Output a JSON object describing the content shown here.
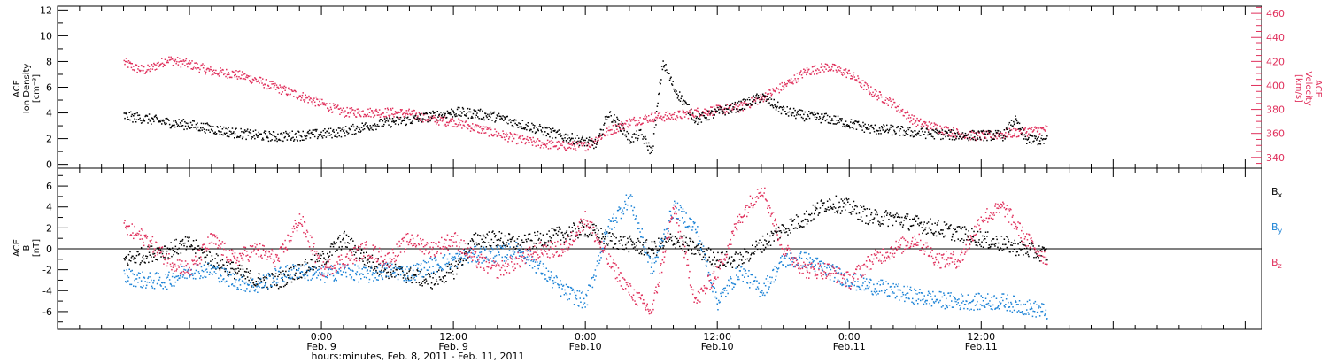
{
  "colors": {
    "black": "#000000",
    "pink": "#e0305c",
    "blue": "#1a82d6"
  },
  "chart_data": [
    {
      "type": "scatter",
      "panel": "top",
      "ylabel_left_lines": [
        "ACE",
        "Ion Density",
        "[cm⁻³]"
      ],
      "ylabel_right_lines": [
        "ACE",
        "Velocity",
        "[km/s]"
      ],
      "ylim_left": [
        -0.3,
        12.3
      ],
      "ylim_right": [
        331,
        466
      ],
      "yticks_left": [
        0,
        2,
        4,
        6,
        8,
        10,
        12
      ],
      "yticks_right": [
        340,
        360,
        380,
        400,
        420,
        440,
        460
      ],
      "x_hours_range": [
        6,
        90
      ],
      "series": [
        {
          "id": "density",
          "axis": "left",
          "color": "#000000",
          "x": [
            6,
            8,
            10,
            12,
            14,
            16,
            18,
            20,
            22,
            24,
            26,
            28,
            30,
            32,
            34,
            36,
            38,
            40,
            42,
            44,
            46,
            48,
            49,
            50,
            51,
            52,
            53,
            54,
            55,
            56,
            58,
            60,
            62,
            64,
            66,
            68,
            70,
            72,
            74,
            76,
            78,
            80,
            82,
            84,
            86,
            87,
            88,
            90
          ],
          "y": [
            3.8,
            3.6,
            3.3,
            3.1,
            2.8,
            2.5,
            2.3,
            2.2,
            2.3,
            2.4,
            2.6,
            3.0,
            3.3,
            3.5,
            3.8,
            4.1,
            4.0,
            3.7,
            3.2,
            2.7,
            2.2,
            1.8,
            1.6,
            4.0,
            3.2,
            2.0,
            2.4,
            1.0,
            8.0,
            6.0,
            3.5,
            4.1,
            4.6,
            5.3,
            4.2,
            3.8,
            3.6,
            3.2,
            2.8,
            2.7,
            2.5,
            2.4,
            2.3,
            2.3,
            2.3,
            3.5,
            2.0,
            1.9
          ]
        },
        {
          "id": "velocity",
          "axis": "right",
          "color": "#e0305c",
          "x": [
            6,
            7,
            8,
            10,
            12,
            14,
            16,
            18,
            20,
            22,
            24,
            26,
            28,
            30,
            32,
            34,
            36,
            38,
            40,
            42,
            44,
            46,
            48,
            50,
            52,
            54,
            56,
            58,
            60,
            62,
            64,
            66,
            68,
            70,
            72,
            74,
            76,
            78,
            80,
            82,
            84,
            86,
            88,
            90
          ],
          "y": [
            420,
            415,
            413,
            422,
            418,
            412,
            410,
            405,
            398,
            392,
            385,
            378,
            378,
            378,
            377,
            372,
            370,
            365,
            360,
            355,
            352,
            350,
            350,
            362,
            370,
            374,
            375,
            378,
            380,
            382,
            390,
            400,
            412,
            416,
            410,
            395,
            385,
            370,
            365,
            360,
            358,
            360,
            362,
            364
          ]
        }
      ]
    },
    {
      "type": "scatter",
      "panel": "bottom",
      "ylabel_lines": [
        "ACE",
        "B",
        "[nT]"
      ],
      "ylim": [
        -7.7,
        7.7
      ],
      "yticks": [
        -6,
        -4,
        -2,
        0,
        2,
        4,
        6
      ],
      "zero_line": true,
      "x_hours_range": [
        6,
        90
      ],
      "legend_position": "right",
      "series": [
        {
          "id": "bx",
          "name": "Bx",
          "name_main": "B",
          "name_sub": "x",
          "color": "#000000",
          "x": [
            6,
            8,
            10,
            12,
            14,
            16,
            18,
            20,
            22,
            24,
            26,
            28,
            30,
            32,
            34,
            36,
            38,
            40,
            42,
            44,
            46,
            48,
            50,
            52,
            54,
            56,
            58,
            60,
            62,
            64,
            66,
            68,
            70,
            72,
            74,
            76,
            78,
            80,
            82,
            84,
            86,
            88,
            90
          ],
          "y": [
            -1,
            -0.5,
            0,
            0.5,
            -1,
            -2,
            -3,
            -3,
            -2,
            -1,
            1,
            -1,
            -2,
            -2.5,
            -3,
            -2,
            1,
            1,
            0.5,
            1,
            1.5,
            2,
            1,
            0.5,
            0,
            1,
            0,
            -1,
            -1,
            0.5,
            2,
            3,
            4.5,
            4,
            3,
            3,
            2.5,
            2,
            1.5,
            1,
            0.5,
            0,
            -0.5
          ]
        },
        {
          "id": "by",
          "name": "By",
          "name_main": "B",
          "name_sub": "y",
          "color": "#1a82d6",
          "x": [
            6,
            8,
            10,
            12,
            14,
            16,
            18,
            20,
            22,
            24,
            26,
            28,
            30,
            32,
            34,
            36,
            38,
            40,
            42,
            44,
            46,
            48,
            50,
            52,
            54,
            56,
            58,
            60,
            62,
            64,
            66,
            68,
            70,
            72,
            74,
            76,
            78,
            80,
            82,
            84,
            86,
            88,
            90
          ],
          "y": [
            -2.5,
            -3,
            -3,
            -2,
            -2,
            -3,
            -3.5,
            -2.5,
            -2,
            -2.5,
            -2,
            -2.5,
            -2,
            -2.3,
            -1.5,
            -1,
            -0.5,
            -0.5,
            0,
            -2,
            -4,
            -5,
            2,
            5,
            -2,
            4,
            2,
            -5,
            -2,
            -4,
            -1,
            -1,
            -2,
            -3,
            -3.5,
            -4,
            -4.5,
            -4.8,
            -5,
            -5,
            -5,
            -5.5,
            -6
          ]
        },
        {
          "id": "bz",
          "name": "Bz",
          "name_main": "B",
          "name_sub": "z",
          "color": "#e0305c",
          "x": [
            6,
            8,
            10,
            12,
            14,
            16,
            18,
            20,
            22,
            24,
            26,
            28,
            30,
            32,
            34,
            36,
            38,
            40,
            42,
            44,
            46,
            48,
            50,
            52,
            54,
            56,
            58,
            60,
            62,
            64,
            66,
            68,
            70,
            72,
            74,
            76,
            78,
            80,
            82,
            84,
            86,
            88,
            90
          ],
          "y": [
            2,
            1,
            -1,
            -2,
            1,
            -1,
            0,
            -1,
            3,
            -2,
            -1,
            0,
            -1,
            1,
            0,
            1,
            -1,
            -2,
            -1,
            0,
            0,
            3,
            -1,
            -4,
            -6,
            4,
            -5,
            -2,
            3,
            6,
            0,
            -2,
            -2,
            -3,
            -1,
            0,
            1,
            -1,
            -1,
            3,
            4,
            1,
            -1
          ]
        }
      ]
    }
  ],
  "x_axis": {
    "ticks": [
      {
        "hours": 24,
        "time": "0:00",
        "date": "Feb. 9"
      },
      {
        "hours": 36,
        "time": "12:00",
        "date": "Feb. 9"
      },
      {
        "hours": 48,
        "time": "0:00",
        "date": "Feb.10"
      },
      {
        "hours": 60,
        "time": "12:00",
        "date": "Feb.10"
      },
      {
        "hours": 72,
        "time": "0:00",
        "date": "Feb.11"
      },
      {
        "hours": 84,
        "time": "12:00",
        "date": "Feb.11"
      }
    ],
    "xlabel": "hours:minutes, Feb.  8, 2011 - Feb. 11, 2011"
  }
}
